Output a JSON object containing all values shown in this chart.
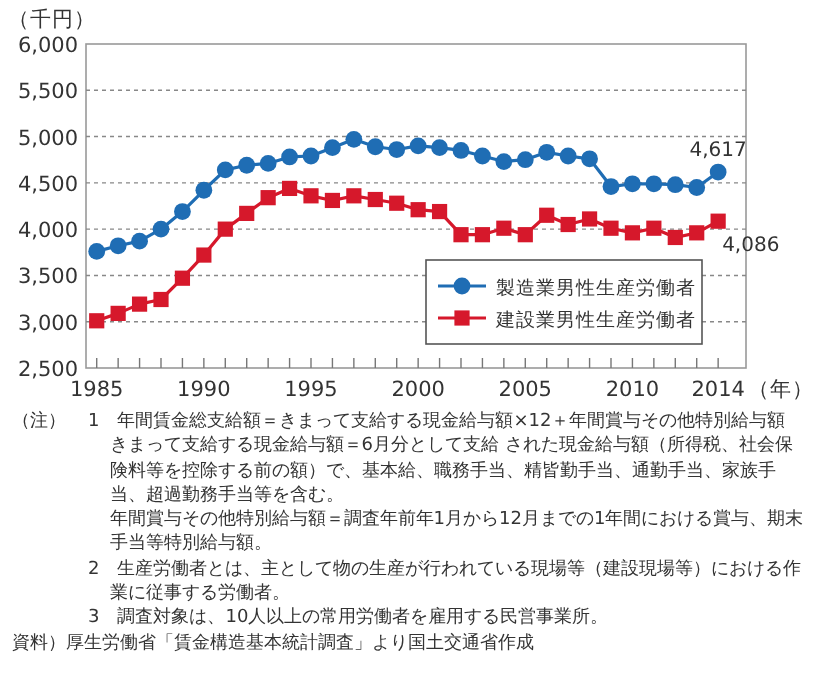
{
  "chart_data": {
    "type": "line",
    "x": [
      1985,
      1986,
      1987,
      1988,
      1989,
      1990,
      1991,
      1992,
      1993,
      1994,
      1995,
      1996,
      1997,
      1998,
      1999,
      2000,
      2001,
      2002,
      2003,
      2004,
      2005,
      2006,
      2007,
      2008,
      2009,
      2010,
      2011,
      2012,
      2013,
      2014
    ],
    "series": [
      {
        "name": "製造業男性生産労働者",
        "color": "#1f6db4",
        "marker": "circle",
        "values": [
          3760,
          3820,
          3870,
          4000,
          4190,
          4420,
          4640,
          4690,
          4710,
          4780,
          4790,
          4880,
          4970,
          4890,
          4860,
          4900,
          4880,
          4850,
          4790,
          4730,
          4750,
          4830,
          4790,
          4760,
          4460,
          4490,
          4490,
          4480,
          4450,
          4617
        ],
        "value_labels": [
          null,
          null,
          null,
          null,
          null,
          null,
          null,
          null,
          null,
          null,
          null,
          null,
          null,
          null,
          null,
          null,
          null,
          null,
          null,
          null,
          null,
          null,
          null,
          null,
          null,
          null,
          null,
          null,
          null,
          "4,617"
        ]
      },
      {
        "name": "建設業男性生産労働者",
        "color": "#d6182b",
        "marker": "square",
        "values": [
          3010,
          3090,
          3190,
          3240,
          3470,
          3720,
          4000,
          4170,
          4340,
          4440,
          4360,
          4310,
          4360,
          4320,
          4280,
          4210,
          4190,
          3940,
          3940,
          4010,
          3940,
          4150,
          4050,
          4110,
          4010,
          3960,
          4010,
          3910,
          3960,
          4086
        ],
        "value_labels": [
          null,
          null,
          null,
          null,
          null,
          null,
          null,
          null,
          null,
          null,
          null,
          null,
          null,
          null,
          null,
          null,
          null,
          null,
          null,
          null,
          null,
          null,
          null,
          null,
          null,
          null,
          null,
          null,
          null,
          "4,086"
        ]
      }
    ],
    "ylabel": "（千円）",
    "xlabel": "（年）",
    "xlim": [
      1984.5,
      2015.3
    ],
    "xticks": [
      1985,
      {
        "value": 1986,
        "label": null
      },
      {
        "value": 1987,
        "label": null
      },
      {
        "value": 1988,
        "label": null
      },
      {
        "value": 1989,
        "label": null
      },
      1990,
      {
        "value": 1991,
        "label": null
      },
      {
        "value": 1992,
        "label": null
      },
      {
        "value": 1993,
        "label": null
      },
      {
        "value": 1994,
        "label": null
      },
      1995,
      {
        "value": 1996,
        "label": null
      },
      {
        "value": 1997,
        "label": null
      },
      {
        "value": 1998,
        "label": null
      },
      {
        "value": 1999,
        "label": null
      },
      2000,
      {
        "value": 2001,
        "label": null
      },
      {
        "value": 2002,
        "label": null
      },
      {
        "value": 2003,
        "label": null
      },
      {
        "value": 2004,
        "label": null
      },
      2005,
      {
        "value": 2006,
        "label": null
      },
      {
        "value": 2007,
        "label": null
      },
      {
        "value": 2008,
        "label": null
      },
      {
        "value": 2009,
        "label": null
      },
      2010,
      {
        "value": 2011,
        "label": null
      },
      {
        "value": 2012,
        "label": null
      },
      {
        "value": 2013,
        "label": null
      },
      2014
    ],
    "ylim": [
      2500,
      6000
    ],
    "yticks": [
      {
        "value": 2500,
        "label": "2,500"
      },
      {
        "value": 3000,
        "label": "3,000"
      },
      {
        "value": 3500,
        "label": "3,500"
      },
      {
        "value": 4000,
        "label": "4,000"
      },
      {
        "value": 4500,
        "label": "4,500"
      },
      {
        "value": 5000,
        "label": "5,000"
      },
      {
        "value": 5500,
        "label": "5,500"
      },
      {
        "value": 6000,
        "label": "6,000"
      }
    ],
    "grid": "y",
    "legend": "bottom right",
    "line_style": "solid",
    "annotations": [
      "（注）",
      "1　年間賃金総支給額＝きまって支給する現金給与額×12＋年間賞与その他特別給与額",
      "きまって支給する現金給与額＝6月分として支給 された現金給与額（所得税、社会保険料等を控除する前の額）で、基本給、職務手当、精皆勤手当、通勤手当、家族手当、超過勤務手当等を含む。",
      "年間賞与その他特別給与額＝調査年前年1月から12月までの1年間における賞与、期末手当等特別給与額。",
      "2　生産労働者とは、主として物の生産が行われている現場等（建設現場等）における作業に従事する労働者。",
      "3　調査対象は、10人以上の常用労働者を雇用する民営事業所。",
      "資料）厚生労働省「賃金構造基本統計調査」より国土交通省作成"
    ]
  }
}
